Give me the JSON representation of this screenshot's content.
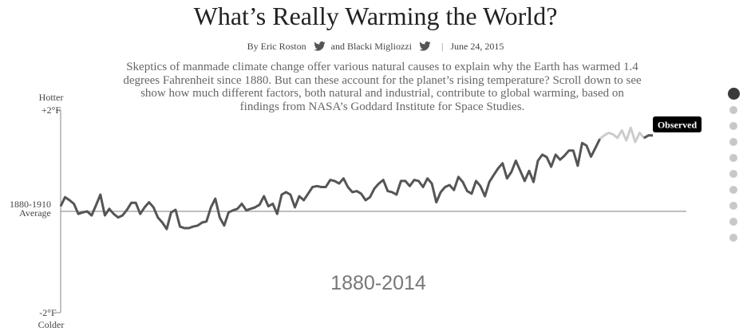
{
  "header": {
    "title": "What’s Really Warming the World?",
    "byline_prefix": "By Eric Roston",
    "byline_and": "and Blacki Migliozzi",
    "byline_sep": "|",
    "date": "June 24, 2015",
    "intro": "Skeptics of manmade climate change offer various natural causes to explain why the Earth has warmed 1.4 degrees Fahrenheit since 1880. But can these account for the planet’s rising temperature? Scroll down to see show how much different factors, both natural and industrial, contribute to global warming, based on findings from NASA’s Goddard Institute for Space Studies."
  },
  "chart_data": {
    "type": "line",
    "ylabels": {
      "top_word": "Hotter",
      "top_value": "+2°F",
      "mid_line1": "1880-1910",
      "mid_line2": "Average",
      "bottom_value": "-2°F",
      "bottom_word": "Colder"
    },
    "period_label": "1880-2014",
    "series_label": "Observed",
    "ylim": [
      -2,
      2
    ],
    "baseline": 0,
    "x_start": 1880,
    "x_end": 2014,
    "colors": {
      "line": "#555555",
      "faded_line": "#cccccc",
      "axis": "#999999",
      "label_bg": "#000000",
      "label_text": "#ffffff"
    },
    "values": [
      0.1,
      0.28,
      0.22,
      0.15,
      -0.05,
      -0.02,
      0.0,
      -0.08,
      0.12,
      0.33,
      -0.08,
      0.05,
      -0.05,
      -0.12,
      -0.08,
      0.03,
      0.17,
      0.17,
      -0.05,
      0.08,
      0.18,
      0.08,
      -0.12,
      -0.22,
      -0.35,
      -0.02,
      0.03,
      -0.3,
      -0.33,
      -0.33,
      -0.3,
      -0.28,
      -0.22,
      -0.2,
      0.08,
      0.25,
      -0.12,
      -0.28,
      -0.02,
      0.02,
      0.05,
      0.15,
      0.02,
      0.05,
      0.08,
      0.13,
      0.3,
      0.1,
      0.15,
      -0.05,
      0.33,
      0.38,
      0.33,
      0.08,
      0.3,
      0.22,
      0.35,
      0.48,
      0.5,
      0.48,
      0.48,
      0.62,
      0.6,
      0.55,
      0.65,
      0.48,
      0.38,
      0.4,
      0.35,
      0.22,
      0.28,
      0.45,
      0.55,
      0.62,
      0.4,
      0.38,
      0.33,
      0.6,
      0.6,
      0.5,
      0.62,
      0.6,
      0.48,
      0.65,
      0.55,
      0.18,
      0.38,
      0.48,
      0.52,
      0.42,
      0.68,
      0.58,
      0.4,
      0.35,
      0.6,
      0.5,
      0.3,
      0.58,
      0.72,
      0.85,
      0.95,
      0.65,
      0.78,
      1.0,
      0.8,
      0.6,
      0.8,
      0.58,
      1.0,
      1.12,
      1.07,
      0.88,
      1.12,
      1.02,
      1.1,
      1.2,
      1.2,
      0.9,
      1.35,
      1.3,
      1.08,
      1.25,
      1.43,
      1.5,
      1.55,
      1.52,
      1.45,
      1.6,
      1.4,
      1.65,
      1.37,
      1.55,
      1.45,
      1.5,
      1.5
    ],
    "faded_from_index": 123
  },
  "nav": {
    "dot_count": 10,
    "active_index": 0
  }
}
